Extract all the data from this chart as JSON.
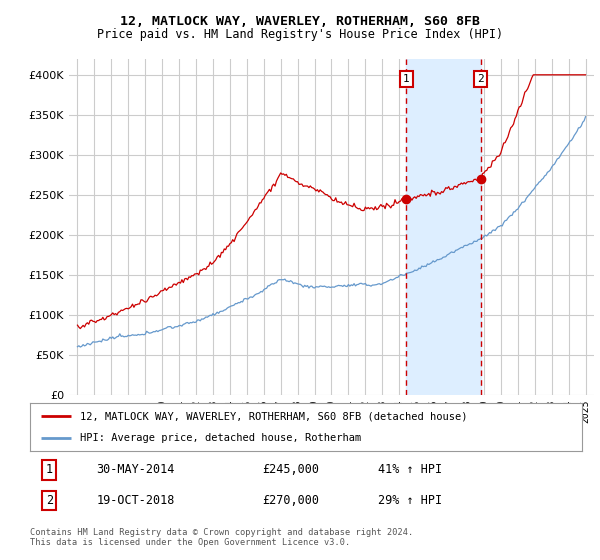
{
  "title": "12, MATLOCK WAY, WAVERLEY, ROTHERHAM, S60 8FB",
  "subtitle": "Price paid vs. HM Land Registry's House Price Index (HPI)",
  "ylabel_ticks": [
    "£0",
    "£50K",
    "£100K",
    "£150K",
    "£200K",
    "£250K",
    "£300K",
    "£350K",
    "£400K"
  ],
  "ytick_values": [
    0,
    50000,
    100000,
    150000,
    200000,
    250000,
    300000,
    350000,
    400000
  ],
  "ylim": [
    0,
    420000
  ],
  "xlim_start": 1994.5,
  "xlim_end": 2025.5,
  "transaction1_date": 2014.42,
  "transaction1_price": 245000,
  "transaction1_label": "30-MAY-2014",
  "transaction1_hpi": "41% ↑ HPI",
  "transaction2_date": 2018.8,
  "transaction2_price": 270000,
  "transaction2_label": "19-OCT-2018",
  "transaction2_hpi": "29% ↑ HPI",
  "red_line_color": "#cc0000",
  "blue_line_color": "#6699cc",
  "shade_color": "#ddeeff",
  "grid_color": "#cccccc",
  "background_color": "#ffffff",
  "legend_line1": "12, MATLOCK WAY, WAVERLEY, ROTHERHAM, S60 8FB (detached house)",
  "legend_line2": "HPI: Average price, detached house, Rotherham",
  "footnote1": "Contains HM Land Registry data © Crown copyright and database right 2024.",
  "footnote2": "This data is licensed under the Open Government Licence v3.0."
}
